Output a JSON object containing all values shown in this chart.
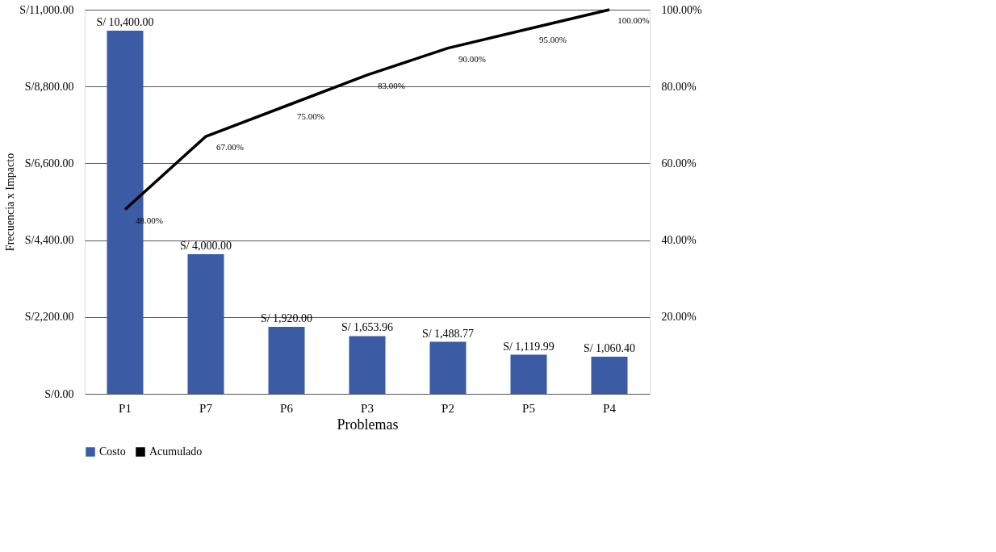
{
  "chart_data": {
    "type": "bar",
    "xlabel": "Problemas",
    "ylabel": "Frecuencia x Impacto",
    "categories": [
      "P1",
      "P7",
      "P6",
      "P3",
      "P2",
      "P5",
      "P4"
    ],
    "series": [
      {
        "name": "Costo",
        "color": "#3b5ba5",
        "values": [
          10400.0,
          4000.0,
          1920.0,
          1653.96,
          1488.77,
          1119.99,
          1060.4
        ],
        "value_labels": [
          "S/ 10,400.00",
          "S/ 4,000.00",
          "S/ 1,920.00",
          "S/ 1,653.96",
          "S/ 1,488.77",
          "S/ 1,119.99",
          "S/ 1,060.40"
        ]
      },
      {
        "name": "Acumulado",
        "type": "line",
        "axis": "y2",
        "color": "#000000",
        "values": [
          48,
          67,
          75,
          83,
          90,
          95,
          100
        ],
        "value_labels": [
          "48.00%",
          "67.00%",
          "75.00%",
          "83.00%",
          "90.00%",
          "95.00%",
          "100.00%"
        ]
      }
    ],
    "ylim": [
      0,
      11000
    ],
    "yticks": [
      {
        "value": 0,
        "label": "S/0.00"
      },
      {
        "value": 2200,
        "label": "S/2,200.00"
      },
      {
        "value": 4400,
        "label": "S/4,400.00"
      },
      {
        "value": 6600,
        "label": "S/6,600.00"
      },
      {
        "value": 8800,
        "label": "S/8,800.00"
      },
      {
        "value": 11000,
        "label": "S/11,000.00"
      }
    ],
    "y2lim": [
      0,
      100
    ],
    "y2ticks": [
      {
        "value": 20,
        "label": "20.00%"
      },
      {
        "value": 40,
        "label": "40.00%"
      },
      {
        "value": 60,
        "label": "60.00%"
      },
      {
        "value": 80,
        "label": "80.00%"
      },
      {
        "value": 100,
        "label": "100.00%"
      }
    ],
    "grid": "y",
    "legend": "bottom"
  }
}
